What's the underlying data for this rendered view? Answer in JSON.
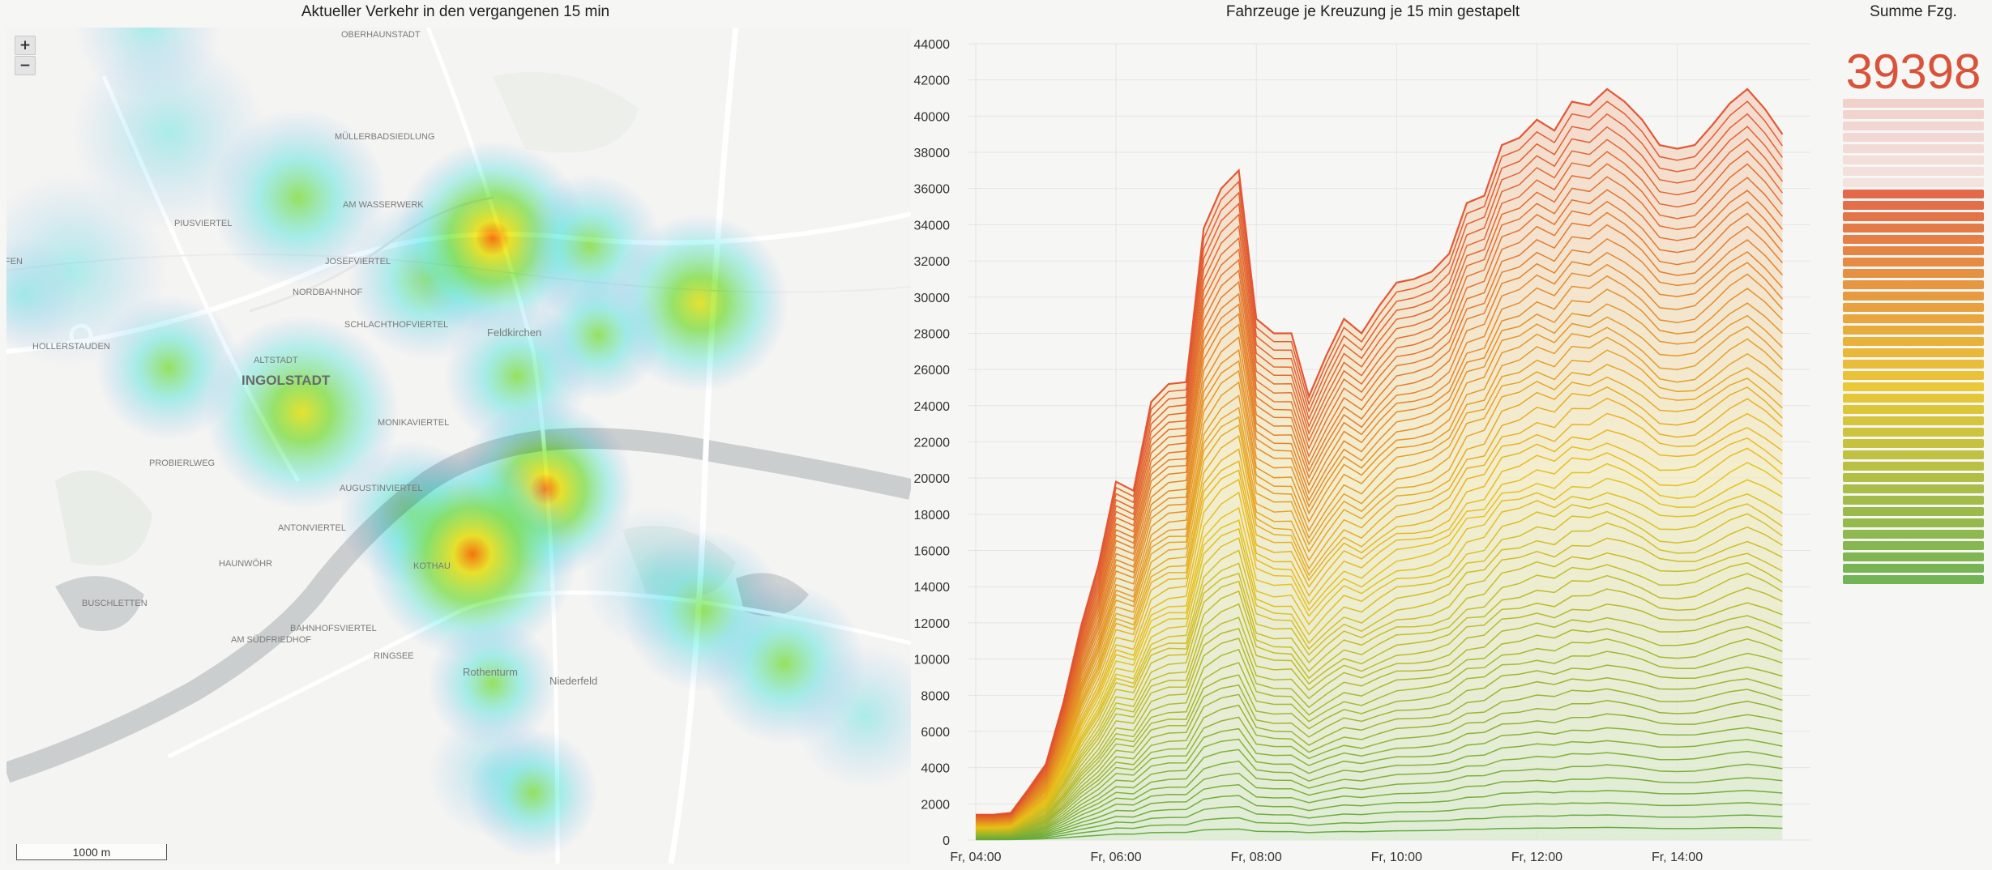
{
  "titles": {
    "map": "Aktueller Verkehr in den vergangenen 15 min",
    "chart": "Fahrzeuge je Kreuzung je 15 min gestapelt",
    "sum": "Summe Fzg."
  },
  "map": {
    "zoom_in": "+",
    "zoom_out": "−",
    "scale": "1000 m",
    "labels": [
      "OBERHAUNSTADT",
      "MÜLLERBADSIEDLUNG",
      "AM WASSERWERK",
      "PIUSVIERTEL",
      "JOSEFVIERTEL",
      "NORDBAHNHOF",
      "SCHLACHTHOFVIERTEL",
      "Feldkirchen",
      "HOLLERSTAUDEN",
      "ALTSTADT",
      "INGOLSTADT",
      "MONIKAVIERTEL",
      "PROBIERLWEG",
      "AUGUSTINVIERTEL",
      "ANTONVIERTEL",
      "HAUNWÖHR",
      "KOTHAU",
      "BUSCHLETTEN",
      "AM SÜDFRIEDHOF",
      "BAHNHOFSVIERTEL",
      "RINGSEE",
      "Rothenturm",
      "Niederfeld",
      "FEN"
    ],
    "colors": {
      "water": "#c9cccd",
      "road": "#ffffff",
      "green": "#e8ece6"
    }
  },
  "summary": {
    "total": "39398",
    "bar_count": 43,
    "faded_count": 8
  },
  "chart_data": {
    "type": "area",
    "stacked": true,
    "title": "Fahrzeuge je Kreuzung je 15 min gestapelt",
    "x_ticks": [
      "Fr, 04:00",
      "Fr, 06:00",
      "Fr, 08:00",
      "Fr, 10:00",
      "Fr, 12:00",
      "Fr, 14:00"
    ],
    "y_ticks": [
      0,
      2000,
      4000,
      6000,
      8000,
      10000,
      12000,
      14000,
      16000,
      18000,
      20000,
      22000,
      24000,
      26000,
      28000,
      30000,
      32000,
      34000,
      36000,
      38000,
      40000,
      42000,
      44000
    ],
    "ylim": [
      0,
      44000
    ],
    "xlim_hours": [
      4,
      15.5
    ],
    "grid": true,
    "series_count": 60,
    "total_curve": {
      "x": [
        4.0,
        4.25,
        4.5,
        4.75,
        5.0,
        5.25,
        5.5,
        5.75,
        6.0,
        6.25,
        6.5,
        6.75,
        7.0,
        7.25,
        7.5,
        7.75,
        8.0,
        8.25,
        8.5,
        8.75,
        9.0,
        9.25,
        9.5,
        9.75,
        10.0,
        10.25,
        10.5,
        10.75,
        11.0,
        11.25,
        11.5,
        11.75,
        12.0,
        12.25,
        12.5,
        12.75,
        13.0,
        13.25,
        13.5,
        13.75,
        14.0,
        14.25,
        14.5,
        14.75,
        15.0,
        15.25,
        15.5
      ],
      "y": [
        1400,
        1400,
        1500,
        2800,
        4200,
        7600,
        11800,
        15200,
        19800,
        19300,
        24200,
        25200,
        25300,
        33800,
        36000,
        37000,
        28800,
        28000,
        28000,
        24500,
        26800,
        28800,
        28000,
        29500,
        30800,
        31000,
        31400,
        32400,
        35200,
        35600,
        38400,
        38800,
        39800,
        39200,
        40800,
        40600,
        41500,
        40800,
        39800,
        38400,
        38200,
        38400,
        39500,
        40700,
        41500,
        40400,
        39000
      ]
    },
    "colors": {
      "low": "#5aa83a",
      "mid": "#e8c015",
      "high": "#e0502c"
    }
  }
}
